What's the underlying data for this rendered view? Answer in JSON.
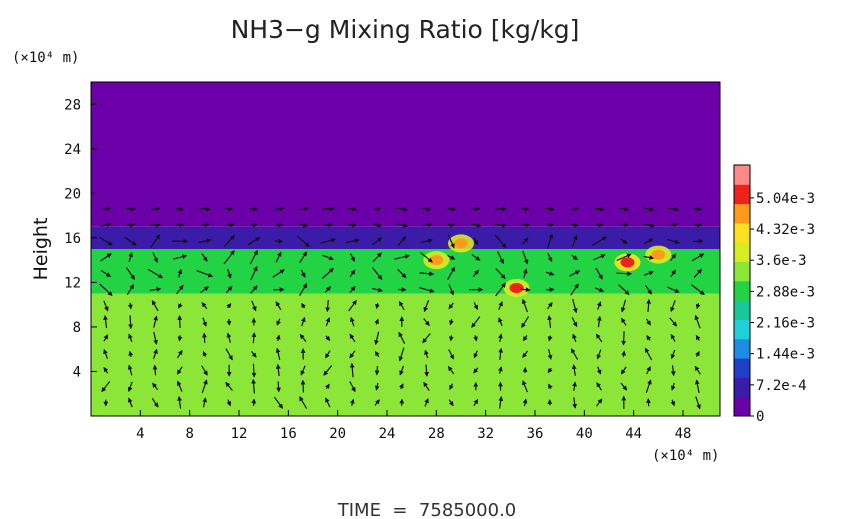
{
  "chart_data": {
    "type": "heatmap",
    "title": "NH3−g Mixing Ratio [kg/kg]",
    "x_unit": "(×10⁴ m)",
    "y_unit": "(×10⁴ m)",
    "ylabel": "Height",
    "footer": "TIME  =  7585000.0",
    "xlim": [
      0,
      51
    ],
    "ylim": [
      0,
      30
    ],
    "x_ticks": [
      4,
      8,
      12,
      16,
      20,
      24,
      28,
      32,
      36,
      40,
      44,
      48
    ],
    "y_ticks": [
      4,
      8,
      12,
      16,
      20,
      24,
      28
    ],
    "colorbar": {
      "range": [
        0,
        0.0058
      ],
      "tick_values": [
        0,
        0.00072,
        0.00144,
        0.00216,
        0.00288,
        0.0036,
        0.00432,
        0.00504
      ],
      "tick_labels": [
        "0",
        "7.2e-4",
        "1.44e-3",
        "2.16e-3",
        "2.88e-3",
        "3.6e-3",
        "4.32e-3",
        "5.04e-3"
      ],
      "colors": [
        "#6c00a8",
        "#3a1ca8",
        "#1e40c8",
        "#1c8ce6",
        "#20d0d8",
        "#18c896",
        "#22d444",
        "#8ce638",
        "#d8ec22",
        "#ffe020",
        "#ff9a1a",
        "#f0201a",
        "#ff8888"
      ]
    },
    "field_summary": [
      {
        "region": "height 0-11 (lower layer)",
        "value": 0.0035
      },
      {
        "region": "height 11-15 (mixed layer)",
        "value": 0.0028
      },
      {
        "region": "height 15-17 (top of cloud deck)",
        "value": 0.0008
      },
      {
        "region": "height 17-30 (upper region)",
        "value": 0
      }
    ],
    "hotspots": [
      {
        "x": 28,
        "y": 14,
        "value": 0.0045
      },
      {
        "x": 30,
        "y": 15.5,
        "value": 0.0046
      },
      {
        "x": 34.5,
        "y": 11.5,
        "value": 0.005
      },
      {
        "x": 43.5,
        "y": 13.8,
        "value": 0.0052
      },
      {
        "x": 46,
        "y": 14.5,
        "value": 0.0048
      }
    ]
  }
}
